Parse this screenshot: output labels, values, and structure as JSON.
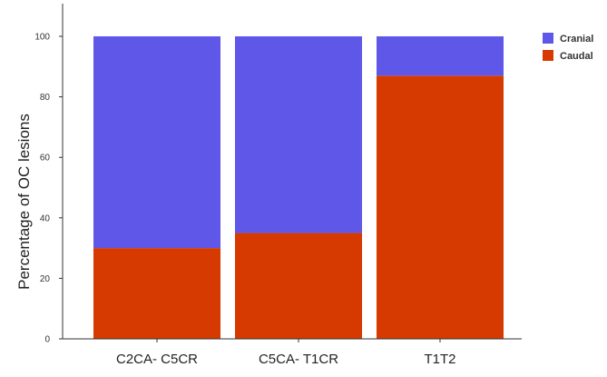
{
  "chart_data": {
    "type": "bar",
    "stacked": true,
    "percent": true,
    "categories": [
      "C2CA- C5CR",
      "C5CA- T1CR",
      "T1T2"
    ],
    "series": [
      {
        "name": "Caudal",
        "color": "#d63a00",
        "values": [
          30,
          35,
          87
        ]
      },
      {
        "name": "Cranial",
        "color": "#5f57e8",
        "values": [
          70,
          65,
          13
        ]
      }
    ],
    "ylabel": "Percentage of OC lesions",
    "xlabel": "",
    "title": "",
    "ylim": [
      0,
      100
    ],
    "yticks": [
      0,
      20,
      40,
      60,
      80,
      100
    ],
    "grid": false,
    "legend": {
      "placement": "top-right",
      "entries": [
        {
          "name": "Cranial",
          "color": "#5f57e8"
        },
        {
          "name": "Caudal",
          "color": "#d63a00"
        }
      ]
    }
  }
}
